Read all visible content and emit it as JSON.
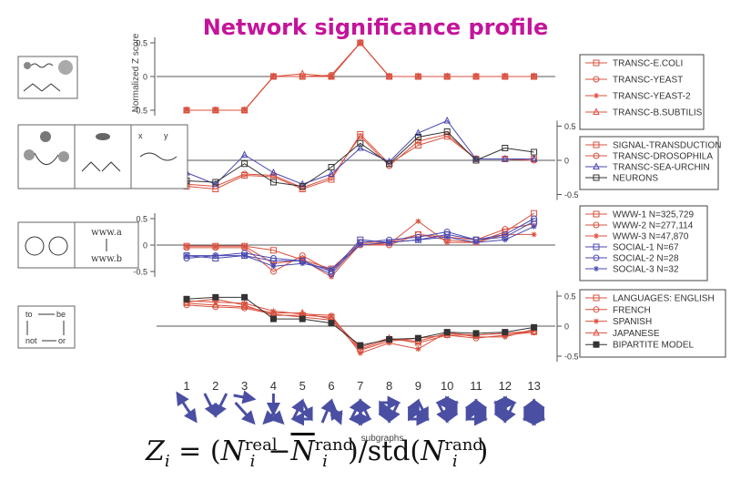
{
  "title": "Network significance profile",
  "colors": {
    "title": "#c4149a",
    "red": "#d9503e",
    "blue": "#4a48b0",
    "dark": "#333333",
    "arrow": "#4a4fa3"
  },
  "y_axis_label": "Normalized Z score",
  "x_axis_label": "subgraphs",
  "diagram_labels": {
    "www_a": "www.a",
    "www_b": "www.b",
    "to": "to",
    "be": "be",
    "not": "not",
    "or": "or",
    "x": "x",
    "y": "y"
  },
  "formula": {
    "lhs_base": "Z",
    "lhs_sub": "i",
    "equals": "= (",
    "n1_base": "N",
    "n1_sup": "real",
    "n1_sub": "i",
    "minus": "−",
    "n2_base": "N",
    "n2_sup": "rand",
    "n2_sub": "i",
    "close": ")/std(",
    "n3_base": "N",
    "n3_sup": "rand",
    "n3_sub": "i",
    "end": ")"
  },
  "chart_data": [
    {
      "type": "line",
      "title": "Network significance profile",
      "ylabel": "Normalized Z score",
      "y_ticks": [
        0.5,
        0,
        -0.5
      ],
      "y_tick_labels": [
        "0.5",
        "0",
        "-0.5"
      ],
      "y_axis_side": "left",
      "ylim": [
        -0.5,
        0.5
      ],
      "x": [
        1,
        2,
        3,
        4,
        5,
        6,
        7,
        8,
        9,
        10,
        11,
        12,
        13
      ],
      "legend_position": "right",
      "series": [
        {
          "name": "TRANSC-E.COLI",
          "marker": "square",
          "color": "#d9503e",
          "values": [
            -0.5,
            -0.5,
            -0.5,
            0,
            0,
            0,
            0.5,
            0,
            0,
            0,
            0,
            0,
            0
          ]
        },
        {
          "name": "TRANSC-YEAST",
          "marker": "circle",
          "color": "#d9503e",
          "values": [
            -0.5,
            -0.5,
            -0.5,
            0,
            0,
            0.02,
            0.5,
            0,
            0,
            0,
            0,
            0,
            0
          ]
        },
        {
          "name": "TRANSC-YEAST-2",
          "marker": "star",
          "color": "#d9503e",
          "values": [
            -0.5,
            -0.5,
            -0.5,
            0,
            0,
            0,
            0.5,
            0,
            0,
            0,
            0,
            0,
            0
          ]
        },
        {
          "name": "TRANSC-B.SUBTILIS",
          "marker": "triangle",
          "color": "#d9503e",
          "values": [
            -0.5,
            -0.5,
            -0.5,
            0,
            0.04,
            0,
            0.5,
            0,
            0,
            0,
            0,
            0,
            0
          ]
        }
      ]
    },
    {
      "type": "line",
      "y_ticks": [
        0.5,
        0,
        -0.5
      ],
      "y_tick_labels": [
        "0.5",
        "0",
        "-0.5"
      ],
      "y_axis_side": "right",
      "ylim": [
        -0.5,
        0.5
      ],
      "x": [
        1,
        2,
        3,
        4,
        5,
        6,
        7,
        8,
        9,
        10,
        11,
        12,
        13
      ],
      "legend_position": "right",
      "series": [
        {
          "name": "SIGNAL-TRANSDUCTION",
          "marker": "square",
          "color": "#d9503e",
          "values": [
            -0.38,
            -0.42,
            -0.22,
            -0.24,
            -0.42,
            -0.28,
            0.38,
            -0.05,
            0.22,
            0.35,
            0.02,
            0.02,
            0.02
          ]
        },
        {
          "name": "TRANSC-DROSOPHILA",
          "marker": "circle",
          "color": "#d9503e",
          "values": [
            -0.35,
            -0.38,
            -0.2,
            -0.22,
            -0.4,
            -0.25,
            0.35,
            -0.08,
            0.28,
            0.38,
            0.02,
            0.02,
            0.0
          ]
        },
        {
          "name": "TRANSC-SEA-URCHIN",
          "marker": "triangle",
          "color": "#4a48b0",
          "values": [
            -0.18,
            -0.35,
            0.08,
            -0.18,
            -0.35,
            -0.2,
            0.18,
            -0.02,
            0.4,
            0.58,
            0.02,
            0.02,
            0.02
          ]
        },
        {
          "name": "NEURONS",
          "marker": "square",
          "color": "#333333",
          "values": [
            -0.3,
            -0.32,
            -0.05,
            -0.32,
            -0.38,
            -0.1,
            0.25,
            -0.05,
            0.34,
            0.42,
            0.0,
            0.18,
            0.12
          ]
        }
      ]
    },
    {
      "type": "line",
      "y_ticks": [
        0.5,
        0,
        -0.5
      ],
      "y_tick_labels": [
        "0.5",
        "0",
        "-0.5"
      ],
      "y_axis_side": "left",
      "ylim": [
        -0.6,
        0.6
      ],
      "x": [
        1,
        2,
        3,
        4,
        5,
        6,
        7,
        8,
        9,
        10,
        11,
        12,
        13
      ],
      "legend_position": "right",
      "series": [
        {
          "name": "WWW-1 N=325,729",
          "marker": "square",
          "color": "#d9503e",
          "values": [
            -0.02,
            -0.02,
            -0.02,
            -0.1,
            -0.28,
            -0.45,
            0.05,
            0.05,
            0.2,
            0.1,
            0.05,
            0.25,
            0.6
          ]
        },
        {
          "name": "WWW-2 N=277,114",
          "marker": "circle",
          "color": "#d9503e",
          "values": [
            -0.05,
            -0.05,
            -0.05,
            -0.5,
            -0.2,
            -0.5,
            0.0,
            0.0,
            0.2,
            0.15,
            0.1,
            0.3,
            0.4
          ]
        },
        {
          "name": "WWW-3 N=47,870",
          "marker": "star",
          "color": "#d9503e",
          "values": [
            -0.02,
            -0.02,
            -0.02,
            -0.35,
            -0.28,
            -0.6,
            0.02,
            0.02,
            0.45,
            0.05,
            0.05,
            0.2,
            0.2
          ]
        },
        {
          "name": "SOCIAL-1 N=67",
          "marker": "square",
          "color": "#4a48b0",
          "values": [
            -0.2,
            -0.25,
            -0.2,
            -0.3,
            -0.3,
            -0.5,
            0.1,
            0.05,
            0.1,
            0.2,
            0.1,
            0.15,
            0.45
          ]
        },
        {
          "name": "SOCIAL-2 N=28",
          "marker": "circle",
          "color": "#4a48b0",
          "values": [
            -0.25,
            -0.2,
            -0.15,
            -0.25,
            -0.3,
            -0.55,
            0.05,
            0.1,
            0.15,
            0.25,
            0.1,
            0.2,
            0.5
          ]
        },
        {
          "name": "SOCIAL-3 N=32",
          "marker": "star",
          "color": "#4a48b0",
          "values": [
            -0.2,
            -0.2,
            -0.2,
            -0.4,
            -0.35,
            -0.45,
            0.0,
            0.05,
            0.1,
            0.15,
            0.05,
            0.1,
            0.35
          ]
        }
      ]
    },
    {
      "type": "line",
      "y_ticks": [
        0.5,
        0,
        -0.5
      ],
      "y_tick_labels": [
        "0.5",
        "0",
        "-0.5"
      ],
      "y_axis_side": "right",
      "ylim": [
        -0.5,
        0.5
      ],
      "x": [
        1,
        2,
        3,
        4,
        5,
        6,
        7,
        8,
        9,
        10,
        11,
        12,
        13
      ],
      "legend_position": "right",
      "series": [
        {
          "name": "LANGUAGES: ENGLISH",
          "marker": "square",
          "color": "#d9503e",
          "values": [
            0.4,
            0.45,
            0.35,
            0.18,
            0.18,
            0.15,
            -0.38,
            -0.22,
            -0.25,
            -0.12,
            -0.15,
            -0.12,
            -0.08
          ]
        },
        {
          "name": "FRENCH",
          "marker": "circle",
          "color": "#d9503e",
          "values": [
            0.35,
            0.32,
            0.3,
            0.2,
            0.15,
            0.1,
            -0.4,
            -0.25,
            -0.2,
            -0.15,
            -0.2,
            -0.15,
            -0.1
          ]
        },
        {
          "name": "SPANISH",
          "marker": "star",
          "color": "#d9503e",
          "values": [
            0.42,
            0.4,
            0.38,
            0.25,
            0.2,
            0.18,
            -0.45,
            -0.28,
            -0.38,
            -0.1,
            -0.18,
            -0.18,
            -0.05
          ]
        },
        {
          "name": "JAPANESE",
          "marker": "triangle",
          "color": "#d9503e",
          "values": [
            0.38,
            0.35,
            0.32,
            0.22,
            0.22,
            0.12,
            -0.35,
            -0.2,
            -0.28,
            -0.15,
            -0.15,
            -0.12,
            -0.1
          ]
        },
        {
          "name": "BIPARTITE MODEL",
          "marker": "square_filled",
          "color": "#333333",
          "values": [
            0.45,
            0.48,
            0.48,
            0.12,
            0.12,
            0.05,
            -0.32,
            -0.22,
            -0.2,
            -0.1,
            -0.12,
            -0.1,
            -0.02
          ]
        }
      ]
    }
  ],
  "subgraph_labels": [
    "1",
    "2",
    "3",
    "4",
    "5",
    "6",
    "7",
    "8",
    "9",
    "10",
    "11",
    "12",
    "13"
  ]
}
